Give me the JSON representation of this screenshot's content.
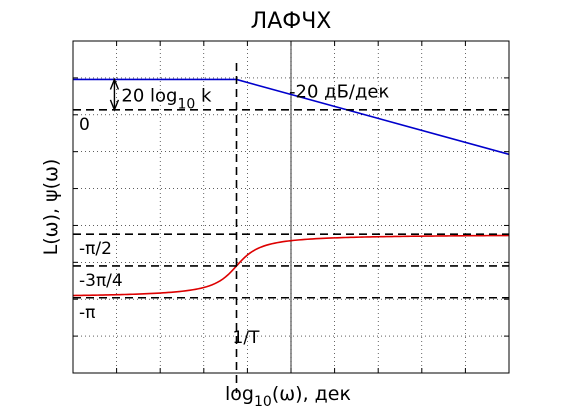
{
  "chart_data": {
    "type": "line",
    "title": "ЛАФЧХ",
    "xlabel": {
      "main": "log",
      "sub": "10",
      "rest": "(ω), дек"
    },
    "ylabel": "L(ω),  ψ(ω)",
    "grid": true,
    "x_ticks_labeled": false,
    "y_ticks_labeled": false,
    "series": [
      {
        "color": "#0000cc",
        "x": [
          0,
          1.5,
          4
        ],
        "y": [
          2.25,
          2.25,
          0.4
        ]
      },
      {
        "color": "#dd0000",
        "shape": "arctan",
        "from": -3.14159,
        "to": -1.5708,
        "center": 1.5,
        "x_range": [
          0,
          4
        ]
      }
    ],
    "reference_lines": [
      {
        "orientation": "horizontal",
        "value": 1.5,
        "label": "0"
      },
      {
        "orientation": "horizontal",
        "value": -1.5708,
        "label": "-π/2"
      },
      {
        "orientation": "horizontal",
        "value": -2.35619,
        "label": "-3π/4"
      },
      {
        "orientation": "horizontal",
        "value": -3.14159,
        "label": "-π"
      },
      {
        "orientation": "vertical",
        "value": 1.5,
        "label": "1/T"
      }
    ],
    "annotations": [
      {
        "type": "double-arrow",
        "x": 0.38,
        "y_from": 1.5,
        "y_to": 2.25,
        "text": {
          "main": "20 log",
          "sub": "10",
          "rest": " k"
        }
      },
      {
        "type": "text",
        "x": 2.0,
        "y": 1.95,
        "text": "-20 дБ/дек"
      }
    ]
  }
}
